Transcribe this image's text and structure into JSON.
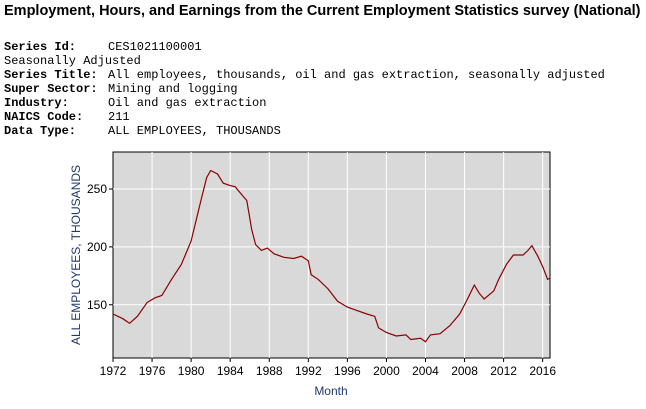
{
  "page_title": "Employment, Hours, and Earnings from the Current Employment Statistics survey (National)",
  "series_info": {
    "series_id_label": "Series Id:",
    "series_id": "CES1021100001",
    "seasonal": "Seasonally Adjusted",
    "series_title_label": "Series Title:",
    "series_title": "All employees, thousands, oil and gas extraction, seasonally adjusted",
    "super_sector_label": "Super Sector:",
    "super_sector": "Mining and logging",
    "industry_label": "Industry:",
    "industry": "Oil and gas extraction",
    "naics_label": "NAICS Code:",
    "naics": "211",
    "data_type_label": "Data Type:",
    "data_type": "ALL EMPLOYEES, THOUSANDS"
  },
  "chart_data": {
    "type": "line",
    "title": "",
    "xlabel": "Month",
    "ylabel": "ALL EMPLOYEES, THOUSANDS",
    "xlim": [
      1972,
      2016.75
    ],
    "ylim": [
      104,
      282
    ],
    "xticks": [
      "1972",
      "1976",
      "1980",
      "1984",
      "1988",
      "1992",
      "1996",
      "2000",
      "2004",
      "2008",
      "2012",
      "2016"
    ],
    "yticks": [
      "150",
      "200",
      "250"
    ],
    "grid": true,
    "line_color": "#8b0000",
    "plot_bg": "#d9d9d9",
    "series": [
      {
        "name": "All employees, oil and gas extraction",
        "x": [
          1972,
          1973,
          1973.7,
          1974.5,
          1975.5,
          1976.3,
          1977,
          1978,
          1979,
          1980,
          1981,
          1981.6,
          1982,
          1982.7,
          1983.3,
          1984,
          1984.5,
          1985,
          1985.7,
          1986.2,
          1986.6,
          1987.2,
          1987.8,
          1988.5,
          1989.5,
          1990.5,
          1991.3,
          1992,
          1992.3,
          1993,
          1994,
          1995,
          1996,
          1997,
          1998,
          1998.8,
          1999.2,
          2000,
          2001,
          2002,
          2002.5,
          2003.5,
          2004,
          2004.5,
          2005.5,
          2006.5,
          2007.5,
          2008.3,
          2009,
          2009.5,
          2010,
          2011,
          2011.5,
          2012.3,
          2013,
          2014,
          2014.5,
          2014.9,
          2015.5,
          2016,
          2016.5,
          2016.75
        ],
        "y": [
          142,
          138,
          134,
          140,
          152,
          156,
          158,
          172,
          185,
          205,
          240,
          260,
          266,
          263,
          255,
          253,
          252,
          247,
          240,
          215,
          202,
          197,
          199,
          194,
          191,
          190,
          192,
          188,
          176,
          172,
          164,
          153,
          148,
          145,
          142,
          140,
          130,
          126,
          123,
          124,
          120,
          121,
          118,
          124,
          125,
          132,
          142,
          155,
          167,
          160,
          155,
          162,
          172,
          185,
          193,
          193,
          197,
          201,
          192,
          183,
          172,
          173
        ]
      }
    ]
  }
}
